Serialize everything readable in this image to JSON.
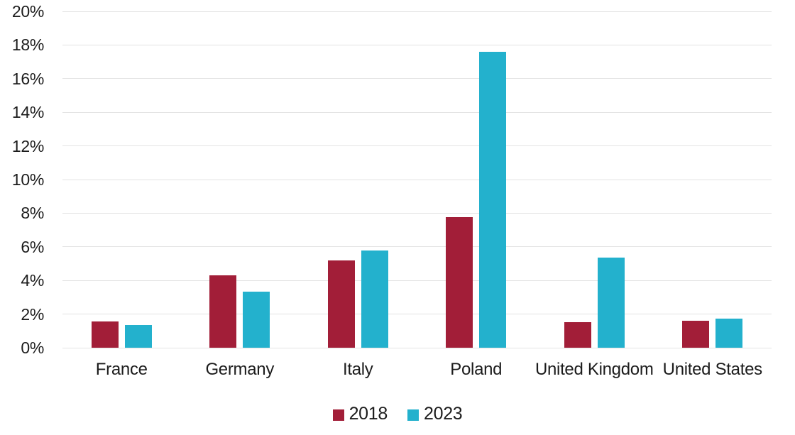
{
  "chart_data": {
    "type": "bar",
    "title": "",
    "xlabel": "",
    "ylabel": "",
    "categories": [
      "France",
      "Germany",
      "Italy",
      "Poland",
      "United Kingdom",
      "United States"
    ],
    "series": [
      {
        "name": "2018",
        "color": "#A21E38",
        "values": [
          1.55,
          4.3,
          5.2,
          7.75,
          1.5,
          1.6
        ]
      },
      {
        "name": "2023",
        "color": "#23B1CD",
        "values": [
          1.35,
          3.35,
          5.8,
          17.6,
          5.35,
          1.75
        ]
      }
    ],
    "ylim": [
      0,
      20
    ],
    "ytick_step": 2,
    "ytick_labels": [
      "0%",
      "2%",
      "4%",
      "6%",
      "8%",
      "10%",
      "12%",
      "14%",
      "16%",
      "18%",
      "20%"
    ],
    "grid": true,
    "legend_position": "bottom-center"
  },
  "colors": {
    "gridline": "#e3e3e3",
    "axis_text": "#1c1c1c",
    "background": "#ffffff"
  }
}
